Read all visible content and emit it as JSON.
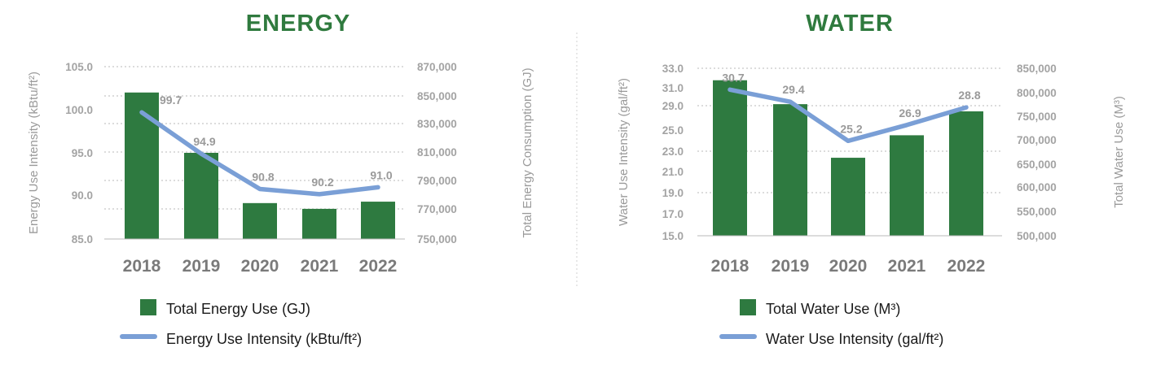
{
  "colors": {
    "bar": "#2e7a40",
    "line": "#7a9fd6",
    "title": "#2f7a3e",
    "grid": "#b8b8b8",
    "divider": "#d0d0d0"
  },
  "chart_data": [
    {
      "type": "bar",
      "title": "ENERGY",
      "categories": [
        "2018",
        "2019",
        "2020",
        "2021",
        "2022"
      ],
      "series": [
        {
          "name": "Total Energy Use (GJ)",
          "type": "bar",
          "axis": "right",
          "values": [
            852000,
            810000,
            775000,
            771000,
            776000
          ]
        },
        {
          "name": "Energy Use Intensity (kBtu/ft²)",
          "type": "line",
          "axis": "left",
          "values": [
            99.7,
            94.9,
            90.8,
            90.2,
            91.0
          ],
          "labels": [
            "99.7",
            "94.9",
            "90.8",
            "90.2",
            "91.0"
          ]
        }
      ],
      "y_left": {
        "label": "Energy Use Intensity (kBtu/ft²)",
        "ticks": [
          "105.0",
          "100.0",
          "95.0",
          "90.0",
          "85.0"
        ],
        "ylim": [
          85,
          105
        ]
      },
      "y_right": {
        "label": "Total Energy Consumption (GJ)",
        "ticks": [
          "870,000",
          "850,000",
          "830,000",
          "810,000",
          "790,000",
          "770,000",
          "750,000"
        ],
        "ylim": [
          750000,
          870000
        ]
      },
      "legend": {
        "position": "bottom",
        "bar_label": "Total Energy Use (GJ)",
        "line_label": "Energy Use Intensity (kBtu/ft²)"
      },
      "grid": "dotted-horizontal"
    },
    {
      "type": "bar",
      "title": "WATER",
      "categories": [
        "2018",
        "2019",
        "2020",
        "2021",
        "2022"
      ],
      "series": [
        {
          "name": "Total Water Use (M³)",
          "type": "bar",
          "axis": "right",
          "values": [
            825000,
            775000,
            663000,
            710000,
            760000
          ]
        },
        {
          "name": "Water Use Intensity (gal/ft²)",
          "type": "line",
          "axis": "left",
          "values": [
            30.7,
            29.4,
            25.2,
            26.9,
            28.8
          ],
          "labels": [
            "30.7",
            "29.4",
            "25.2",
            "26.9",
            "28.8"
          ]
        }
      ],
      "y_left": {
        "label": "Water Use Intensity (gal/ft²)",
        "ticks": [
          "33.0",
          "31.0",
          "29.0",
          "25.0",
          "23.0",
          "21.0",
          "19.0",
          "17.0",
          "15.0"
        ],
        "ylim": [
          15,
          33
        ]
      },
      "y_right": {
        "label": "Total Water Use (M³)",
        "ticks": [
          "850,000",
          "800,000",
          "750,000",
          "700,000",
          "650,000",
          "600,000",
          "550,000",
          "500,000"
        ],
        "ylim": [
          500000,
          850000
        ]
      },
      "legend": {
        "position": "bottom",
        "bar_label": "Total Water Use (M³)",
        "line_label": "Water Use Intensity (gal/ft²)"
      },
      "grid": "dotted-horizontal"
    }
  ]
}
